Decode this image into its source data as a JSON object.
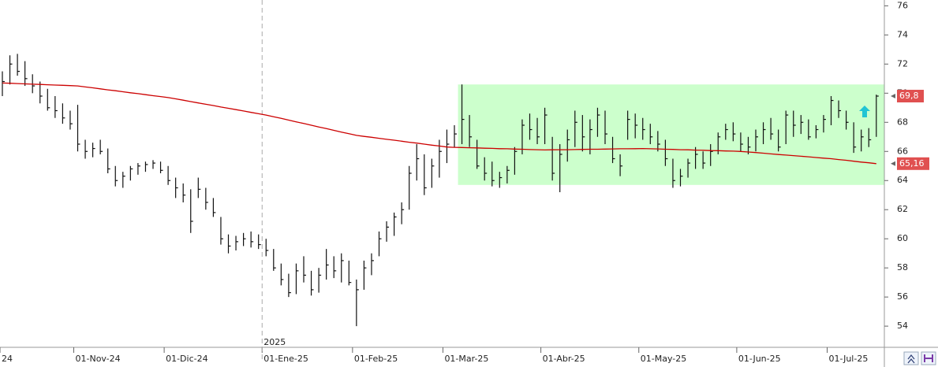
{
  "chart_data": {
    "type": "ohlc",
    "ylim": [
      52.6,
      76.4
    ],
    "yticks": [
      54,
      56,
      58,
      60,
      62,
      64,
      66,
      68,
      70,
      72,
      74,
      76
    ],
    "year_label": "2025",
    "categories": [
      "24",
      null,
      null,
      null,
      null,
      null,
      null,
      null,
      null,
      null,
      "01-Nov-24",
      null,
      null,
      null,
      null,
      null,
      null,
      null,
      null,
      null,
      null,
      null,
      "01-Dic-24",
      null,
      null,
      null,
      null,
      null,
      null,
      null,
      null,
      null,
      null,
      null,
      null,
      "01-Ene-25",
      null,
      null,
      null,
      null,
      null,
      null,
      null,
      null,
      null,
      null,
      null,
      "01-Feb-25",
      null,
      null,
      null,
      null,
      null,
      null,
      null,
      null,
      null,
      null,
      null,
      "01-Mar-25",
      null,
      null,
      null,
      null,
      null,
      null,
      null,
      null,
      null,
      null,
      null,
      null,
      "01-Abr-25",
      null,
      null,
      null,
      null,
      null,
      null,
      null,
      null,
      null,
      null,
      null,
      null,
      "01-May-25",
      null,
      null,
      null,
      null,
      null,
      null,
      null,
      null,
      null,
      null,
      null,
      null,
      "01-Jun-25",
      null,
      null,
      null,
      null,
      null,
      null,
      null,
      null,
      null,
      null,
      null,
      "01-Jul-25",
      null,
      null,
      null,
      null,
      null,
      null
    ],
    "ohlc": {
      "color": "#111111",
      "high": [
        71.5,
        72.6,
        72.7,
        72.2,
        71.3,
        70.8,
        70.3,
        69.8,
        69.3,
        68.8,
        69.2,
        66.8,
        66.6,
        66.8,
        66.2,
        65.0,
        64.6,
        65.0,
        65.2,
        65.3,
        65.4,
        65.3,
        65.0,
        64.2,
        63.8,
        63.4,
        64.2,
        63.5,
        62.8,
        61.5,
        60.3,
        60.2,
        60.4,
        60.5,
        60.3,
        60.0,
        59.3,
        58.3,
        57.6,
        58.3,
        58.8,
        57.8,
        58.0,
        59.3,
        58.8,
        59.0,
        58.5,
        57.2,
        58.5,
        59.0,
        60.5,
        61.2,
        61.8,
        62.5,
        65.0,
        66.5,
        65.8,
        65.5,
        66.8,
        67.5,
        67.8,
        70.6,
        68.5,
        66.8,
        65.6,
        65.3,
        64.6,
        65.0,
        66.3,
        68.2,
        68.6,
        68.3,
        69.0,
        67.0,
        66.5,
        67.5,
        68.8,
        68.5,
        68.2,
        69.0,
        68.8,
        67.0,
        65.8,
        68.8,
        68.6,
        68.3,
        67.9,
        67.4,
        66.8,
        65.5,
        64.8,
        65.5,
        66.3,
        66.0,
        66.5,
        67.3,
        67.9,
        68.0,
        67.3,
        67.0,
        67.5,
        68.0,
        68.3,
        67.5,
        68.8,
        68.8,
        68.5,
        68.2,
        67.8,
        68.5,
        69.8,
        69.5,
        68.8,
        68.0,
        67.5,
        67.6,
        69.9
      ],
      "low": [
        69.8,
        70.6,
        71.2,
        70.5,
        70.0,
        69.3,
        68.8,
        68.3,
        67.9,
        67.5,
        66.0,
        65.5,
        65.6,
        65.8,
        64.5,
        63.6,
        63.5,
        64.0,
        64.4,
        64.6,
        64.8,
        64.5,
        63.7,
        62.8,
        62.5,
        60.4,
        62.8,
        62.0,
        61.5,
        59.6,
        59.0,
        59.2,
        59.5,
        59.4,
        59.3,
        58.8,
        57.8,
        56.8,
        56.0,
        56.2,
        57.0,
        56.1,
        56.3,
        57.2,
        57.3,
        57.0,
        56.8,
        54.0,
        56.5,
        57.5,
        58.8,
        59.8,
        60.2,
        61.0,
        62.0,
        64.0,
        63.0,
        63.5,
        64.2,
        65.2,
        66.3,
        66.5,
        66.3,
        64.8,
        64.0,
        63.6,
        63.5,
        63.8,
        64.4,
        65.8,
        66.8,
        66.5,
        66.5,
        64.0,
        63.2,
        65.3,
        66.3,
        66.0,
        65.8,
        67.0,
        66.5,
        65.2,
        64.3,
        66.8,
        66.9,
        66.8,
        66.5,
        66.0,
        65.0,
        63.5,
        63.6,
        64.2,
        64.8,
        64.8,
        65.0,
        65.8,
        66.8,
        66.7,
        66.0,
        65.8,
        66.0,
        66.5,
        66.8,
        66.0,
        66.5,
        67.0,
        67.2,
        66.8,
        66.9,
        67.3,
        67.8,
        68.3,
        67.5,
        65.9,
        66.0,
        66.3,
        67.0
      ],
      "close": [
        70.8,
        72.0,
        71.5,
        71.0,
        70.5,
        69.8,
        69.0,
        68.8,
        68.3,
        67.9,
        66.5,
        66.0,
        66.2,
        66.0,
        64.8,
        64.0,
        64.3,
        64.8,
        65.0,
        65.1,
        65.2,
        64.7,
        64.0,
        63.5,
        63.0,
        61.2,
        63.4,
        62.5,
        61.8,
        60.0,
        59.5,
        59.8,
        60.0,
        59.8,
        59.6,
        59.2,
        58.0,
        57.2,
        56.3,
        57.8,
        57.5,
        56.5,
        57.5,
        58.2,
        57.8,
        58.5,
        57.0,
        56.5,
        58.0,
        58.5,
        60.0,
        60.8,
        61.5,
        62.0,
        64.5,
        65.5,
        63.5,
        65.0,
        66.0,
        66.5,
        67.2,
        68.2,
        67.0,
        65.0,
        64.5,
        64.0,
        64.2,
        64.7,
        66.0,
        67.8,
        67.5,
        67.0,
        68.5,
        64.5,
        65.8,
        66.8,
        68.0,
        67.0,
        67.5,
        68.5,
        67.2,
        65.5,
        65.0,
        68.2,
        67.8,
        67.5,
        67.0,
        66.5,
        65.5,
        64.0,
        64.3,
        65.2,
        65.8,
        65.2,
        66.0,
        67.0,
        67.5,
        67.2,
        66.5,
        66.3,
        67.0,
        67.5,
        67.2,
        66.3,
        68.5,
        67.8,
        68.0,
        67.0,
        67.5,
        68.2,
        69.5,
        68.8,
        68.0,
        66.3,
        67.0,
        66.8,
        69.8
      ]
    },
    "moving_average": {
      "color": "#cc0000",
      "values": [
        70.7,
        70.68,
        70.66,
        70.64,
        70.62,
        70.6,
        70.58,
        70.56,
        70.54,
        70.52,
        70.5,
        70.43,
        70.37,
        70.3,
        70.23,
        70.17,
        70.1,
        70.03,
        69.97,
        69.9,
        69.83,
        69.77,
        69.7,
        69.61,
        69.52,
        69.42,
        69.33,
        69.24,
        69.15,
        69.05,
        68.96,
        68.87,
        68.78,
        68.68,
        68.59,
        68.5,
        68.38,
        68.27,
        68.15,
        68.03,
        67.92,
        67.8,
        67.68,
        67.57,
        67.45,
        67.33,
        67.22,
        67.1,
        67.03,
        66.97,
        66.9,
        66.83,
        66.77,
        66.7,
        66.63,
        66.57,
        66.5,
        66.43,
        66.37,
        66.3,
        66.28,
        66.27,
        66.25,
        66.24,
        66.22,
        66.21,
        66.19,
        66.18,
        66.16,
        66.15,
        66.13,
        66.12,
        66.1,
        66.11,
        66.12,
        66.12,
        66.13,
        66.14,
        66.15,
        66.15,
        66.16,
        66.17,
        66.18,
        66.18,
        66.19,
        66.2,
        66.18,
        66.17,
        66.15,
        66.14,
        66.12,
        66.11,
        66.09,
        66.08,
        66.06,
        66.05,
        66.03,
        66.02,
        66.0,
        65.96,
        65.92,
        65.88,
        65.83,
        65.79,
        65.75,
        65.71,
        65.67,
        65.63,
        65.58,
        65.54,
        65.5,
        65.44,
        65.39,
        65.33,
        65.27,
        65.22,
        65.16
      ]
    },
    "range_box": {
      "top": 70.6,
      "bottom": 63.7,
      "color": "#ccffcc"
    },
    "price_tags": [
      {
        "value": 69.8,
        "label": "69,8",
        "color": "#e05050"
      },
      {
        "value": 65.16,
        "label": "65,16",
        "color": "#e05050"
      }
    ]
  }
}
